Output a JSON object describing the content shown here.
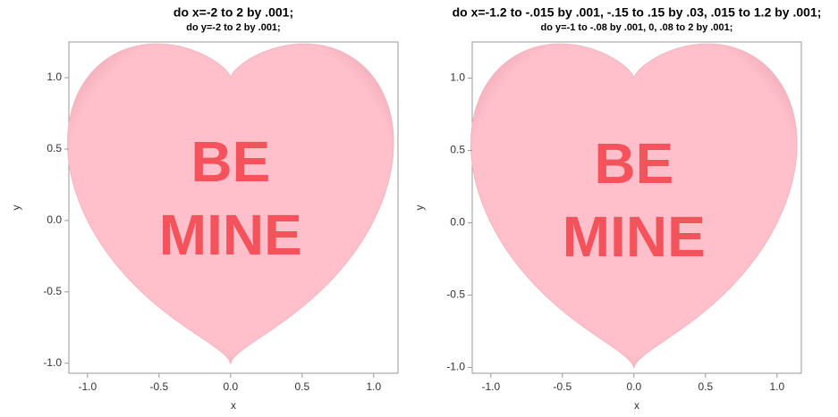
{
  "chart_data": [
    {
      "type": "heart",
      "title": "do x=-2 to 2 by .001;",
      "subtitle": "do y=-2 to 2 by .001;",
      "xlabel": "x",
      "ylabel": "y",
      "annotation": [
        "BE",
        "MINE"
      ],
      "color": "#ffc0cb",
      "text_color": "#f4535b",
      "xlim": [
        -1.13,
        1.17
      ],
      "ylim": [
        -1.07,
        1.25
      ],
      "xticks": [
        {
          "value": -1,
          "label": "-1.0"
        },
        -0.5,
        {
          "value": 0,
          "label": "0.0"
        },
        0.5,
        {
          "value": 1,
          "label": "1.0"
        }
      ],
      "yticks": [
        {
          "value": -1,
          "label": "-1.0"
        },
        -0.5,
        {
          "value": 0,
          "label": "0.0"
        },
        0.5,
        {
          "value": 1,
          "label": "1.0"
        }
      ]
    },
    {
      "type": "heart",
      "title": "do x=-1.2 to -.015 by .001, -.15 to .15 by .03, .015 to 1.2 by .001;",
      "subtitle": "do y=-1 to -.08 by .001, 0, .08 to 2 by .001;",
      "xlabel": "x",
      "ylabel": "y",
      "annotation": [
        "BE",
        "MINE"
      ],
      "color": "#ffc0cb",
      "text_color": "#f4535b",
      "xlim": [
        -1.13,
        1.17
      ],
      "ylim": [
        -1.04,
        1.25
      ],
      "xticks": [
        {
          "value": -1,
          "label": "-1.0"
        },
        -0.5,
        {
          "value": 0,
          "label": "0.0"
        },
        0.5,
        {
          "value": 1,
          "label": "1.0"
        }
      ],
      "yticks": [
        {
          "value": -1,
          "label": "-1.0"
        },
        -0.5,
        {
          "value": 0,
          "label": "0.0"
        },
        0.5,
        {
          "value": 1,
          "label": "1.0"
        }
      ]
    }
  ]
}
